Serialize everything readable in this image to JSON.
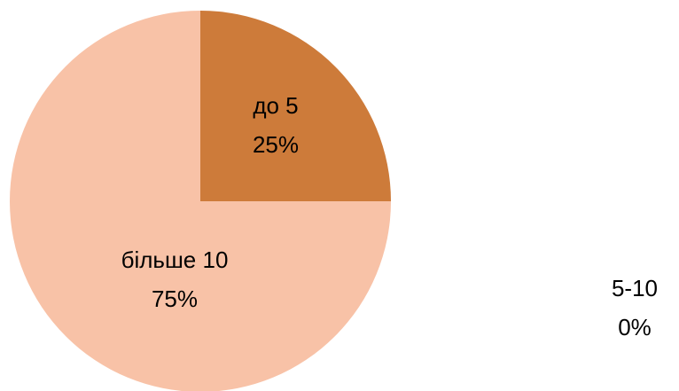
{
  "chart_data": {
    "type": "pie",
    "title": "",
    "start_angle_deg": 0,
    "direction": "clockwise",
    "slices": [
      {
        "category": "до 5",
        "value": 25,
        "percent_label": "25%",
        "color": "#CD7B3A"
      },
      {
        "category": "5-10",
        "value": 0,
        "percent_label": "0%",
        "color": "#E59A62"
      },
      {
        "category": "більше 10",
        "value": 75,
        "percent_label": "75%",
        "color": "#F8C2A7"
      }
    ],
    "legend": "none",
    "data_labels": "category and percentage"
  }
}
